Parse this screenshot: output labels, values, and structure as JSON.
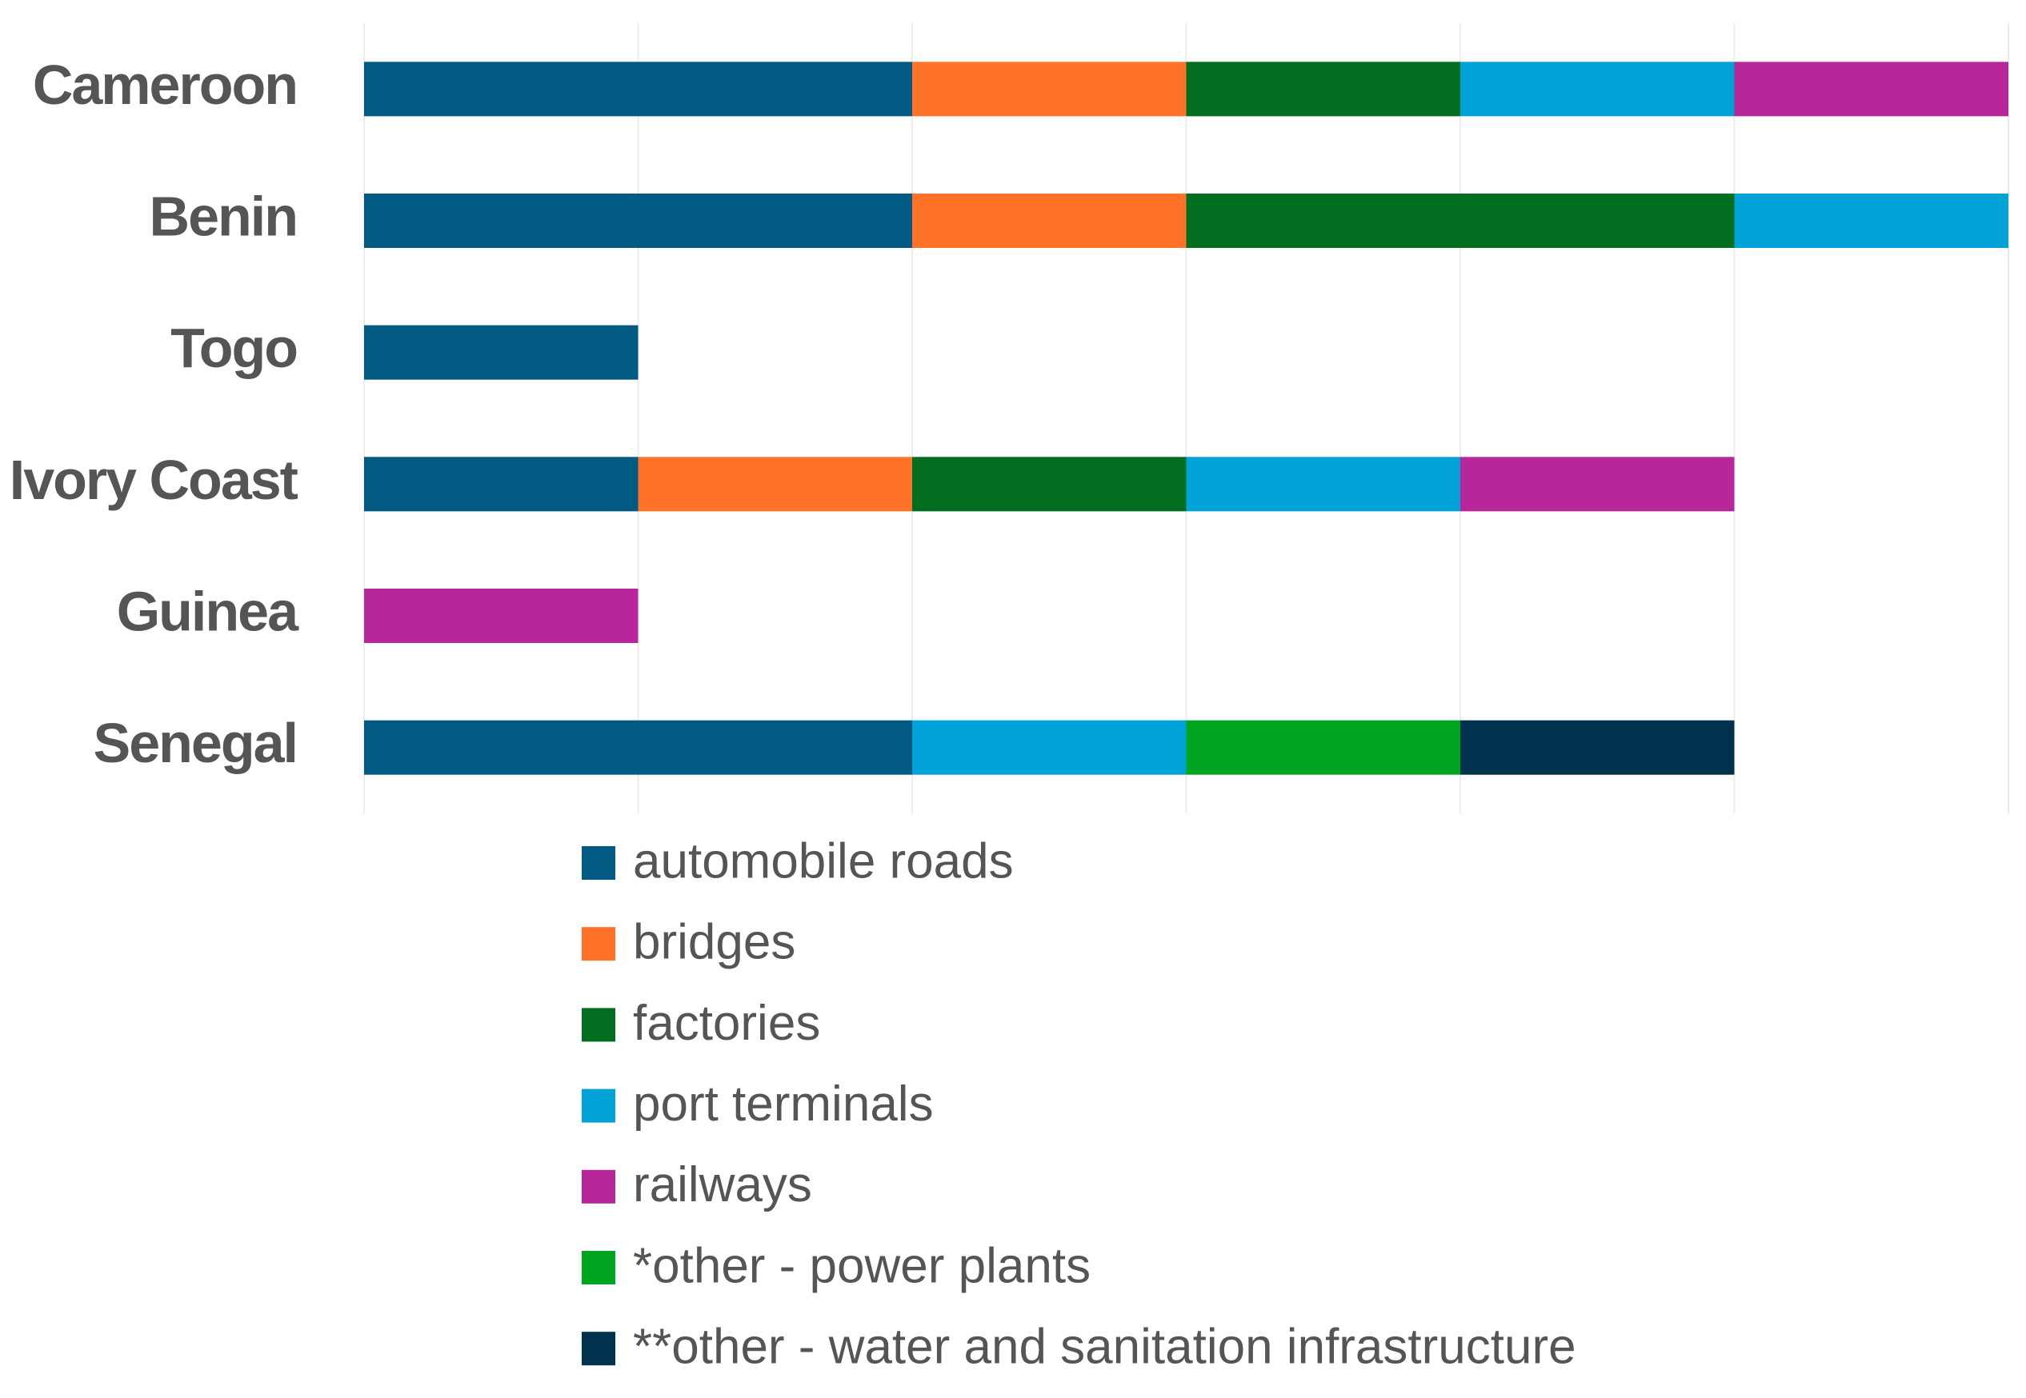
{
  "chart_data": {
    "type": "stacked-bar-horizontal",
    "categories": [
      "Cameroon",
      "Benin",
      "Togo",
      "Ivory Coast",
      "Guinea",
      "Senegal"
    ],
    "series": [
      {
        "name": "automobile roads",
        "color": "#005a82",
        "values": [
          2,
          2,
          1,
          1,
          0,
          2
        ]
      },
      {
        "name": "bridges",
        "color": "#ff7227",
        "values": [
          1,
          1,
          0,
          1,
          0,
          0
        ]
      },
      {
        "name": "factories",
        "color": "#006e1e",
        "values": [
          1,
          2,
          0,
          1,
          0,
          0
        ]
      },
      {
        "name": "port terminals",
        "color": "#00a2d8",
        "values": [
          1,
          1,
          0,
          1,
          0,
          1
        ]
      },
      {
        "name": "railways",
        "color": "#b8279a",
        "values": [
          1,
          0,
          0,
          1,
          1,
          0
        ]
      },
      {
        "name": "*other - power plants",
        "color": "#00a51f",
        "values": [
          0,
          0,
          0,
          0,
          0,
          1
        ]
      },
      {
        "name": "**other - water and sanitation infrastructure",
        "color": "#00324d",
        "values": [
          0,
          0,
          0,
          0,
          0,
          1
        ]
      }
    ],
    "xlim": [
      0,
      6
    ],
    "xticks": [
      0,
      1,
      2,
      3,
      4,
      5,
      6
    ],
    "grid": true
  }
}
